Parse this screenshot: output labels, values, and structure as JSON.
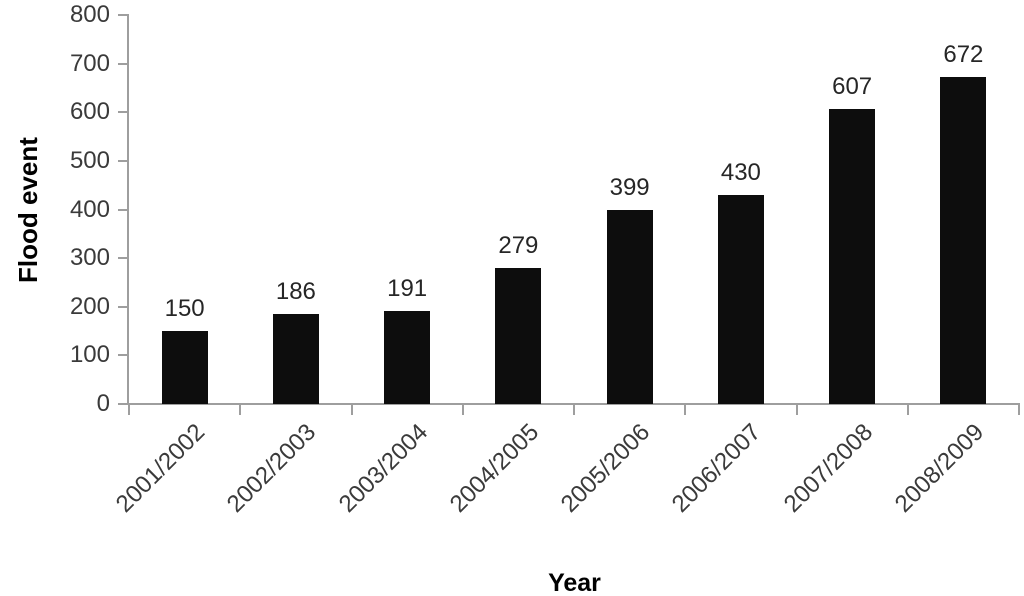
{
  "chart_data": {
    "type": "bar",
    "categories": [
      "2001/2002",
      "2002/2003",
      "2003/2004",
      "2004/2005",
      "2005/2006",
      "2006/2007",
      "2007/2008",
      "2008/2009"
    ],
    "values": [
      150,
      186,
      191,
      279,
      399,
      430,
      607,
      672
    ],
    "data_labels": [
      150,
      186,
      191,
      279,
      399,
      430,
      607,
      672
    ],
    "xlabel": "Year",
    "ylabel": "Flood event",
    "yticks": [
      0,
      100,
      200,
      300,
      400,
      500,
      600,
      700,
      800
    ],
    "ylim": [
      0,
      800
    ],
    "grid": false,
    "legend": false,
    "bar_color": "#0d0d0d",
    "axis_color": "#9e9e9e",
    "tick_label_color": "#3a3a3a",
    "value_label_color": "#262626",
    "title_color": "#000000"
  }
}
